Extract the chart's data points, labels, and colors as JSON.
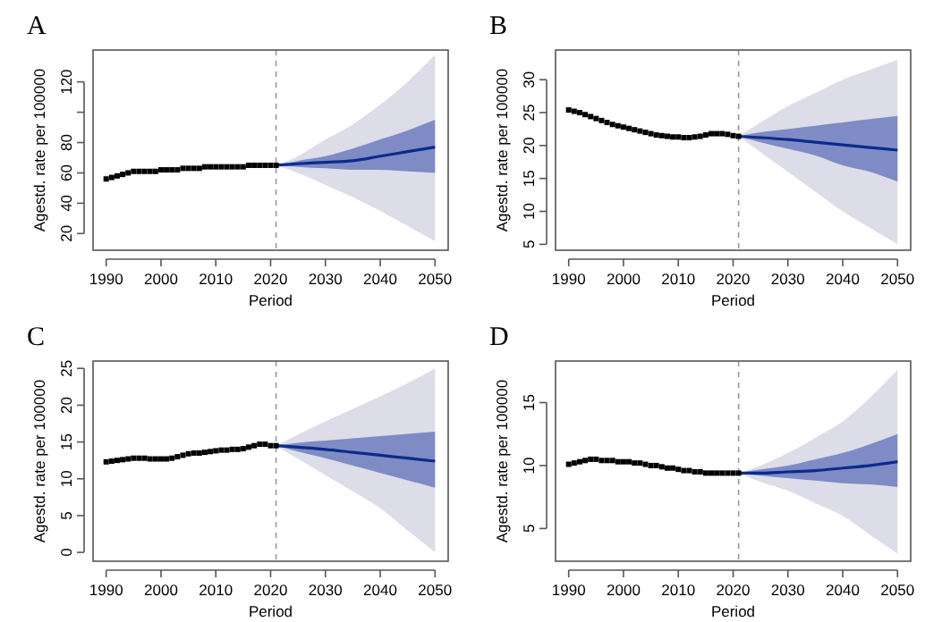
{
  "chart_data": [
    {
      "type": "scatter",
      "title": "A",
      "xlabel": "Period",
      "ylabel": "Agestd. rate per 100000",
      "xlim": [
        1987.6,
        2052.4
      ],
      "ylim": [
        9,
        141
      ],
      "xticks": [
        1990,
        2000,
        2010,
        2020,
        2030,
        2040,
        2050
      ],
      "yticks": [
        20,
        40,
        60,
        80,
        {
          "value": 100,
          "label": null
        },
        120
      ],
      "grid": false,
      "marker": "square",
      "ref_lines": [
        {
          "axis": "x",
          "value": 2021,
          "color": "#999999",
          "line_style": "dashed"
        }
      ],
      "series": [
        {
          "type": "line",
          "color": "#dcdde8",
          "x": [
            2021,
            2025,
            2030,
            2035,
            2040,
            2045,
            2050
          ],
          "values": [
            null,
            null,
            null,
            null,
            null,
            null,
            null
          ],
          "lower": [
            65,
            60,
            52,
            44,
            35,
            25,
            15
          ],
          "upper": [
            65,
            71,
            82,
            92,
            105,
            120,
            138
          ]
        },
        {
          "type": "line",
          "color": "#7f8bc4",
          "x": [
            2021,
            2025,
            2030,
            2035,
            2040,
            2045,
            2050
          ],
          "values": [
            null,
            null,
            null,
            null,
            null,
            null,
            null
          ],
          "lower": [
            65,
            64,
            63,
            62,
            62,
            61,
            60
          ],
          "upper": [
            65,
            68,
            71,
            76,
            82,
            88,
            95
          ]
        },
        {
          "type": "line",
          "color": "#0b2a8c",
          "x": [
            2021,
            2025,
            2030,
            2035,
            2040,
            2045,
            2050
          ],
          "values": [
            65,
            66,
            67,
            68,
            71,
            74,
            77
          ],
          "marker": "none"
        },
        {
          "type": "scatter",
          "color": "#000000",
          "x": [
            1990,
            1991,
            1992,
            1993,
            1994,
            1995,
            1996,
            1997,
            1998,
            1999,
            2000,
            2001,
            2002,
            2003,
            2004,
            2005,
            2006,
            2007,
            2008,
            2009,
            2010,
            2011,
            2012,
            2013,
            2014,
            2015,
            2016,
            2017,
            2018,
            2019,
            2020,
            2021
          ],
          "values": [
            56,
            57,
            58,
            59,
            60,
            61,
            61,
            61,
            61,
            61,
            62,
            62,
            62,
            62,
            63,
            63,
            63,
            63,
            64,
            64,
            64,
            64,
            64,
            64,
            64,
            64,
            65,
            65,
            65,
            65,
            65,
            65
          ]
        }
      ]
    },
    {
      "type": "scatter",
      "title": "B",
      "xlabel": "Period",
      "ylabel": "Agestd. rate per 100000",
      "xlim": [
        1987.6,
        2052.4
      ],
      "ylim": [
        4.1,
        34.5
      ],
      "xticks": [
        1990,
        2000,
        2010,
        2020,
        2030,
        2040,
        2050
      ],
      "yticks": [
        5,
        10,
        15,
        20,
        25,
        30
      ],
      "grid": false,
      "marker": "square",
      "ref_lines": [
        {
          "axis": "x",
          "value": 2021,
          "color": "#999999",
          "line_style": "dashed"
        }
      ],
      "series": [
        {
          "type": "line",
          "color": "#dcdde8",
          "x": [
            2021,
            2025,
            2030,
            2035,
            2040,
            2045,
            2050
          ],
          "values": [
            null,
            null,
            null,
            null,
            null,
            null,
            null
          ],
          "lower": [
            21.4,
            19,
            16,
            13,
            10,
            7.5,
            5
          ],
          "upper": [
            21.4,
            23.5,
            26,
            28,
            30,
            31.5,
            33
          ]
        },
        {
          "type": "line",
          "color": "#7f8bc4",
          "x": [
            2021,
            2025,
            2030,
            2035,
            2040,
            2045,
            2050
          ],
          "values": [
            null,
            null,
            null,
            null,
            null,
            null,
            null
          ],
          "lower": [
            21.4,
            20.5,
            19.5,
            18.5,
            17,
            16,
            14.5
          ],
          "upper": [
            21.4,
            22,
            22.5,
            23,
            23.5,
            24,
            24.5
          ]
        },
        {
          "type": "line",
          "color": "#0b2a8c",
          "x": [
            2021,
            2025,
            2030,
            2035,
            2040,
            2045,
            2050
          ],
          "values": [
            21.4,
            21.2,
            20.9,
            20.5,
            20.1,
            19.7,
            19.3
          ],
          "marker": "none"
        },
        {
          "type": "scatter",
          "color": "#000000",
          "x": [
            1990,
            1991,
            1992,
            1993,
            1994,
            1995,
            1996,
            1997,
            1998,
            1999,
            2000,
            2001,
            2002,
            2003,
            2004,
            2005,
            2006,
            2007,
            2008,
            2009,
            2010,
            2011,
            2012,
            2013,
            2014,
            2015,
            2016,
            2017,
            2018,
            2019,
            2020,
            2021
          ],
          "values": [
            25.4,
            25.2,
            25,
            24.7,
            24.4,
            24.1,
            23.8,
            23.5,
            23.2,
            23,
            22.8,
            22.6,
            22.4,
            22.2,
            22,
            21.8,
            21.6,
            21.5,
            21.4,
            21.3,
            21.3,
            21.2,
            21.2,
            21.3,
            21.4,
            21.6,
            21.8,
            21.8,
            21.8,
            21.7,
            21.5,
            21.4
          ]
        }
      ]
    },
    {
      "type": "scatter",
      "title": "C",
      "xlabel": "Period",
      "ylabel": "Agestd. rate per 100000",
      "xlim": [
        1987.6,
        2052.4
      ],
      "ylim": [
        -1.2,
        26
      ],
      "xticks": [
        1990,
        2000,
        2010,
        2020,
        2030,
        2040,
        2050
      ],
      "yticks": [
        0,
        5,
        10,
        15,
        20,
        25
      ],
      "grid": false,
      "marker": "square",
      "ref_lines": [
        {
          "axis": "x",
          "value": 2021,
          "color": "#999999",
          "line_style": "dashed"
        }
      ],
      "series": [
        {
          "type": "line",
          "color": "#dcdde8",
          "x": [
            2021,
            2025,
            2030,
            2035,
            2040,
            2045,
            2050
          ],
          "values": [
            null,
            null,
            null,
            null,
            null,
            null,
            null
          ],
          "lower": [
            14.5,
            12.7,
            10.5,
            8.3,
            6,
            3,
            0
          ],
          "upper": [
            14.5,
            16,
            17.8,
            19.5,
            21.2,
            23,
            25
          ]
        },
        {
          "type": "line",
          "color": "#7f8bc4",
          "x": [
            2021,
            2025,
            2030,
            2035,
            2040,
            2045,
            2050
          ],
          "values": [
            null,
            null,
            null,
            null,
            null,
            null,
            null
          ],
          "lower": [
            14.5,
            13.7,
            12.8,
            11.8,
            10.8,
            9.8,
            8.8
          ],
          "upper": [
            14.5,
            14.9,
            15.2,
            15.5,
            15.8,
            16.1,
            16.4
          ]
        },
        {
          "type": "line",
          "color": "#0b2a8c",
          "x": [
            2021,
            2025,
            2030,
            2035,
            2040,
            2045,
            2050
          ],
          "values": [
            14.5,
            14.3,
            14,
            13.6,
            13.2,
            12.8,
            12.4
          ],
          "marker": "none"
        },
        {
          "type": "scatter",
          "color": "#000000",
          "x": [
            1990,
            1991,
            1992,
            1993,
            1994,
            1995,
            1996,
            1997,
            1998,
            1999,
            2000,
            2001,
            2002,
            2003,
            2004,
            2005,
            2006,
            2007,
            2008,
            2009,
            2010,
            2011,
            2012,
            2013,
            2014,
            2015,
            2016,
            2017,
            2018,
            2019,
            2020,
            2021
          ],
          "values": [
            12.3,
            12.4,
            12.5,
            12.6,
            12.7,
            12.8,
            12.8,
            12.8,
            12.7,
            12.7,
            12.7,
            12.7,
            12.8,
            13,
            13.2,
            13.4,
            13.5,
            13.5,
            13.6,
            13.7,
            13.8,
            13.9,
            13.9,
            14,
            14,
            14.1,
            14.3,
            14.5,
            14.7,
            14.7,
            14.5,
            14.5
          ]
        }
      ]
    },
    {
      "type": "scatter",
      "title": "D",
      "xlabel": "Period",
      "ylabel": "Agestd. rate per 100000",
      "xlim": [
        1987.6,
        2052.4
      ],
      "ylim": [
        2.4,
        18.3
      ],
      "xticks": [
        1990,
        2000,
        2010,
        2020,
        2030,
        2040,
        2050
      ],
      "yticks": [
        5,
        10,
        15
      ],
      "grid": false,
      "marker": "square",
      "ref_lines": [
        {
          "axis": "x",
          "value": 2021,
          "color": "#999999",
          "line_style": "dashed"
        }
      ],
      "series": [
        {
          "type": "line",
          "color": "#dcdde8",
          "x": [
            2021,
            2025,
            2030,
            2035,
            2040,
            2045,
            2050
          ],
          "values": [
            null,
            null,
            null,
            null,
            null,
            null,
            null
          ],
          "lower": [
            9.4,
            8.7,
            8,
            7,
            6,
            4.5,
            3
          ],
          "upper": [
            9.4,
            10,
            11,
            12.2,
            13.5,
            15.4,
            17.6
          ]
        },
        {
          "type": "line",
          "color": "#7f8bc4",
          "x": [
            2021,
            2025,
            2030,
            2035,
            2040,
            2045,
            2050
          ],
          "values": [
            null,
            null,
            null,
            null,
            null,
            null,
            null
          ],
          "lower": [
            9.4,
            9.2,
            9,
            8.8,
            8.6,
            8.5,
            8.3
          ],
          "upper": [
            9.4,
            9.7,
            10,
            10.5,
            11,
            11.7,
            12.5
          ]
        },
        {
          "type": "line",
          "color": "#0b2a8c",
          "x": [
            2021,
            2025,
            2030,
            2035,
            2040,
            2045,
            2050
          ],
          "values": [
            9.4,
            9.4,
            9.5,
            9.6,
            9.8,
            10,
            10.3
          ],
          "marker": "none"
        },
        {
          "type": "scatter",
          "color": "#000000",
          "x": [
            1990,
            1991,
            1992,
            1993,
            1994,
            1995,
            1996,
            1997,
            1998,
            1999,
            2000,
            2001,
            2002,
            2003,
            2004,
            2005,
            2006,
            2007,
            2008,
            2009,
            2010,
            2011,
            2012,
            2013,
            2014,
            2015,
            2016,
            2017,
            2018,
            2019,
            2020,
            2021
          ],
          "values": [
            10.1,
            10.2,
            10.3,
            10.4,
            10.5,
            10.5,
            10.4,
            10.4,
            10.4,
            10.3,
            10.3,
            10.3,
            10.2,
            10.2,
            10.1,
            10,
            10,
            9.9,
            9.8,
            9.8,
            9.7,
            9.6,
            9.6,
            9.5,
            9.5,
            9.4,
            9.4,
            9.4,
            9.4,
            9.4,
            9.4,
            9.4
          ]
        }
      ]
    }
  ]
}
